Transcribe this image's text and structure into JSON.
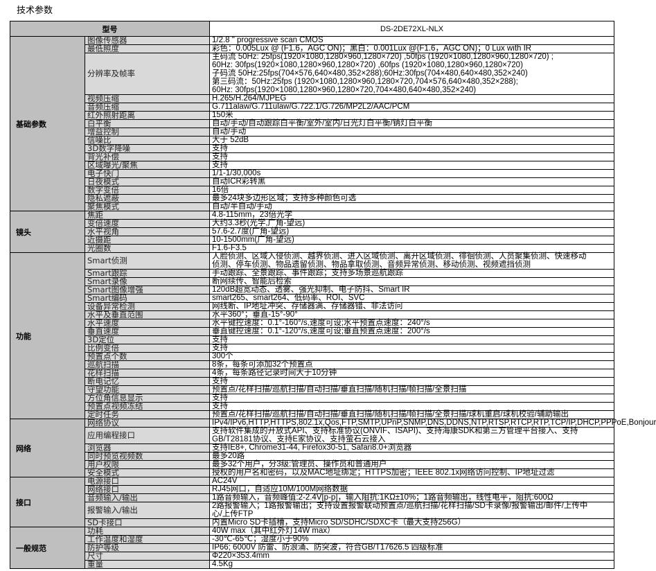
{
  "title": "技术参数",
  "header": {
    "label": "型号",
    "model": "DS-2DE72XL-NLX"
  },
  "sections": [
    {
      "category": "基础参数",
      "rows": [
        {
          "name": "图像传感器",
          "lines": [
            "1/2.8 \"  progressive scan CMOS"
          ]
        },
        {
          "name": "最低照度",
          "lines": [
            "彩色：0.005Lux @ (F1.6，AGC ON)；黑白：0.001Lux @(F1.6，AGC ON)；0 Lux with IR"
          ]
        },
        {
          "name": "分辨率及帧率",
          "lines": [
            "主码流  50Hz: 25fps(1920×1080,1280×960,1280×720) ,50fps (1920×1080,1280×960,1280×720) ;",
            "             60Hz: 30fps(1920×1080,1280×960,1280×720) ,60fps (1920×1080,1280×960,1280×720)",
            "子码流  50Hz:25fps(704×576,640×480,352×288);60Hz:30fps(704×480,640×480,352×240)",
            "第三码流：50Hz:25fps (1920×1080,1280×960,1280×720,704×576,640×480,352×288);",
            "               60Hz: 30fps(1920×1080,1280×960,1280×720,704×480,640×480,352×240)"
          ]
        },
        {
          "name": "视频压缩",
          "lines": [
            "H.265/H.264/MJPEG"
          ]
        },
        {
          "name": "音频压缩",
          "lines": [
            "G.711alaw/G.711ulaw/G.722.1/G.726/MP2L2/AAC/PCM"
          ]
        },
        {
          "name": "红外照射距离",
          "lines": [
            "150米"
          ]
        },
        {
          "name": "白平衡",
          "lines": [
            "自动/手动/自动跟踪白平衡/室外/室内/日光灯白平衡/钠灯白平衡"
          ]
        },
        {
          "name": "增益控制",
          "lines": [
            "自动/手动"
          ]
        },
        {
          "name": "信噪比",
          "lines": [
            "大于 52dB"
          ]
        },
        {
          "name": "3D数字降噪",
          "lines": [
            "支持"
          ]
        },
        {
          "name": "背光补偿",
          "lines": [
            "支持"
          ]
        },
        {
          "name": "区域曝光/聚焦",
          "lines": [
            "支持"
          ]
        },
        {
          "name": "电子快门",
          "lines": [
            "1/1-1/30,000s"
          ]
        },
        {
          "name": "日夜模式",
          "lines": [
            "自动ICR彩转黑"
          ]
        },
        {
          "name": "数字变倍",
          "lines": [
            "16倍"
          ]
        },
        {
          "name": "隐私遮蔽",
          "lines": [
            "最多24块多边形区域；支持多种颜色可选"
          ]
        },
        {
          "name": "聚焦模式",
          "lines": [
            "自动/半自动/手动"
          ]
        }
      ]
    },
    {
      "category": "镜头",
      "rows": [
        {
          "name": "焦距",
          "lines": [
            "4.8-115mm，23倍光学"
          ]
        },
        {
          "name": "变倍速度",
          "lines": [
            "大约3.3秒(光学,广角-望远)"
          ]
        },
        {
          "name": "水平视角",
          "lines": [
            "57.6-2.7度(广角-望远)"
          ]
        },
        {
          "name": "近摄距",
          "lines": [
            "10-1500mm(广角-望远)"
          ]
        },
        {
          "name": "光圈数",
          "lines": [
            "F1.6-F3.5"
          ]
        }
      ]
    },
    {
      "category": "功能",
      "rows": [
        {
          "name": "Smart侦测",
          "lines": [
            "人脸侦测、区域入侵侦测、越界侦测、进入区域侦测、离开区域侦测、徘徊侦测、人员聚集侦测、快速移动",
            "侦测、停车侦测、物品遗留侦测、物品拿取侦测、音频异常侦测、移动侦测、视频遮挡侦测"
          ]
        },
        {
          "name": "Smart跟踪",
          "lines": [
            "手动跟踪、全景跟踪、事件跟踪；支持多场景巡航跟踪"
          ]
        },
        {
          "name": "Smart录像",
          "lines": [
            "断网续传、智能后检索"
          ]
        },
        {
          "name": "Smart图像增强",
          "lines": [
            "120dB超宽动态、透雾、强光抑制、电子防抖、Smart IR"
          ]
        },
        {
          "name": "Smart编码",
          "lines": [
            "smart265、smart264、低码率、ROI、SVC"
          ]
        },
        {
          "name": "设备异常检测",
          "lines": [
            "网线断、IP地址冲突、存储器满、存储器错、非法访问"
          ]
        },
        {
          "name": "水平及垂直范围",
          "lines": [
            "水平360°；垂直-15°-90°"
          ]
        },
        {
          "name": "水平速度",
          "lines": [
            "水平键控速度：0.1°-160°/s,速度可设;水平预置点速度：240°/s"
          ]
        },
        {
          "name": "垂直速度",
          "lines": [
            "垂直键控速度：0.1°-120°/s,速度可设;垂直预置点速度：200°/s"
          ]
        },
        {
          "name": "3D定位",
          "lines": [
            "支持"
          ]
        },
        {
          "name": "比例变倍",
          "lines": [
            "支持"
          ]
        },
        {
          "name": "预置点个数",
          "lines": [
            "300个"
          ]
        },
        {
          "name": "巡航扫描",
          "lines": [
            "8条，每条可添加32个预置点"
          ]
        },
        {
          "name": "花样扫描",
          "lines": [
            "4条，每条路径记录时间大于10分钟"
          ]
        },
        {
          "name": "断电记忆",
          "lines": [
            "支持"
          ]
        },
        {
          "name": "守望功能",
          "lines": [
            "预置点/花样扫描/巡航扫描/自动扫描/垂直扫描/随机扫描/帧扫描/全景扫描"
          ]
        },
        {
          "name": "方位角信息显示",
          "lines": [
            "支持"
          ]
        },
        {
          "name": "预置点视频冻结",
          "lines": [
            "支持"
          ]
        },
        {
          "name": "定时任务",
          "lines": [
            "预置点/花样扫描/巡航扫描/自动扫描/垂直扫描/随机扫描/帧扫描/全景扫描/球机重启/球机校验/辅助输出"
          ]
        }
      ]
    },
    {
      "category": "网络",
      "rows": [
        {
          "name": "网络协议",
          "lines": [
            "IPv4/IPv6,HTTP,HTTPS,802.1x,Qos,FTP,SMTP,UPnP,SNMP,DNS,DDNS,NTP,RTSP,RTCP,RTP,TCP/IP,DHCP,PPPoE,Bonjour"
          ]
        },
        {
          "name": "应用编程接口",
          "lines": [
            "支持软件集成的开放式API、支持标准协议(ONVIF、ISAPI)、支持海康SDK和第三方管理平台接入、支持",
            "GB/T28181协议、支持E家协议、支持萤石云接入"
          ]
        },
        {
          "name": "浏览器",
          "lines": [
            "支持IE8+, Chrome31-44, Firefox30-51, Safari8.0+浏览器"
          ]
        },
        {
          "name": "同时预览视频数",
          "lines": [
            "最多20路"
          ]
        },
        {
          "name": "用户权限",
          "lines": [
            "最多32个用户，分3级:管理员、操作员和普通用户"
          ]
        },
        {
          "name": "安全模式",
          "lines": [
            "授权的用户名和密码，以及MAC地址绑定；HTTPS加密；IEEE 802.1x网络访问控制、IP地址过滤"
          ]
        }
      ]
    },
    {
      "category": "接口",
      "rows": [
        {
          "name": "电源接口",
          "lines": [
            "AC24V"
          ]
        },
        {
          "name": "网络接口",
          "lines": [
            "RJ45网口，自适应10M/100M网络数据"
          ]
        },
        {
          "name": "音频输入/输出",
          "lines": [
            "1路音频输入，音频峰值:2-2.4V[p-p]，输入阻抗:1KΩ±10%；1路音频输出，线性电平，阻抗:600Ω"
          ]
        },
        {
          "name": "报警输入/输出",
          "lines": [
            "2路报警输入；1路报警输出；支持设置报警联动预置点/巡航扫描/花样扫描/SD卡录像/报警输出/邮件/上传中",
            "心/上传FTP"
          ]
        },
        {
          "name": "SD卡接口",
          "lines": [
            "内置Micro SD卡插槽，支持Micro SD/SDHC/SDXC卡（最大支持256G）"
          ]
        }
      ]
    },
    {
      "category": "一般规范",
      "rows": [
        {
          "name": "功耗",
          "lines": [
            "40W max（其中红外灯14W max）"
          ]
        },
        {
          "name": "工作温度和湿度",
          "lines": [
            "-30℃-65℃；湿度小于90%"
          ]
        },
        {
          "name": "防护等级",
          "lines": [
            "IP66; 6000V 防雷、防浪涌、防突波，符合GB/T17626.5 四级标准"
          ]
        },
        {
          "name": "尺寸",
          "lines": [
            "Φ220×353.4mm"
          ]
        },
        {
          "name": "重量",
          "lines": [
            "4.5Kg"
          ]
        }
      ]
    }
  ]
}
